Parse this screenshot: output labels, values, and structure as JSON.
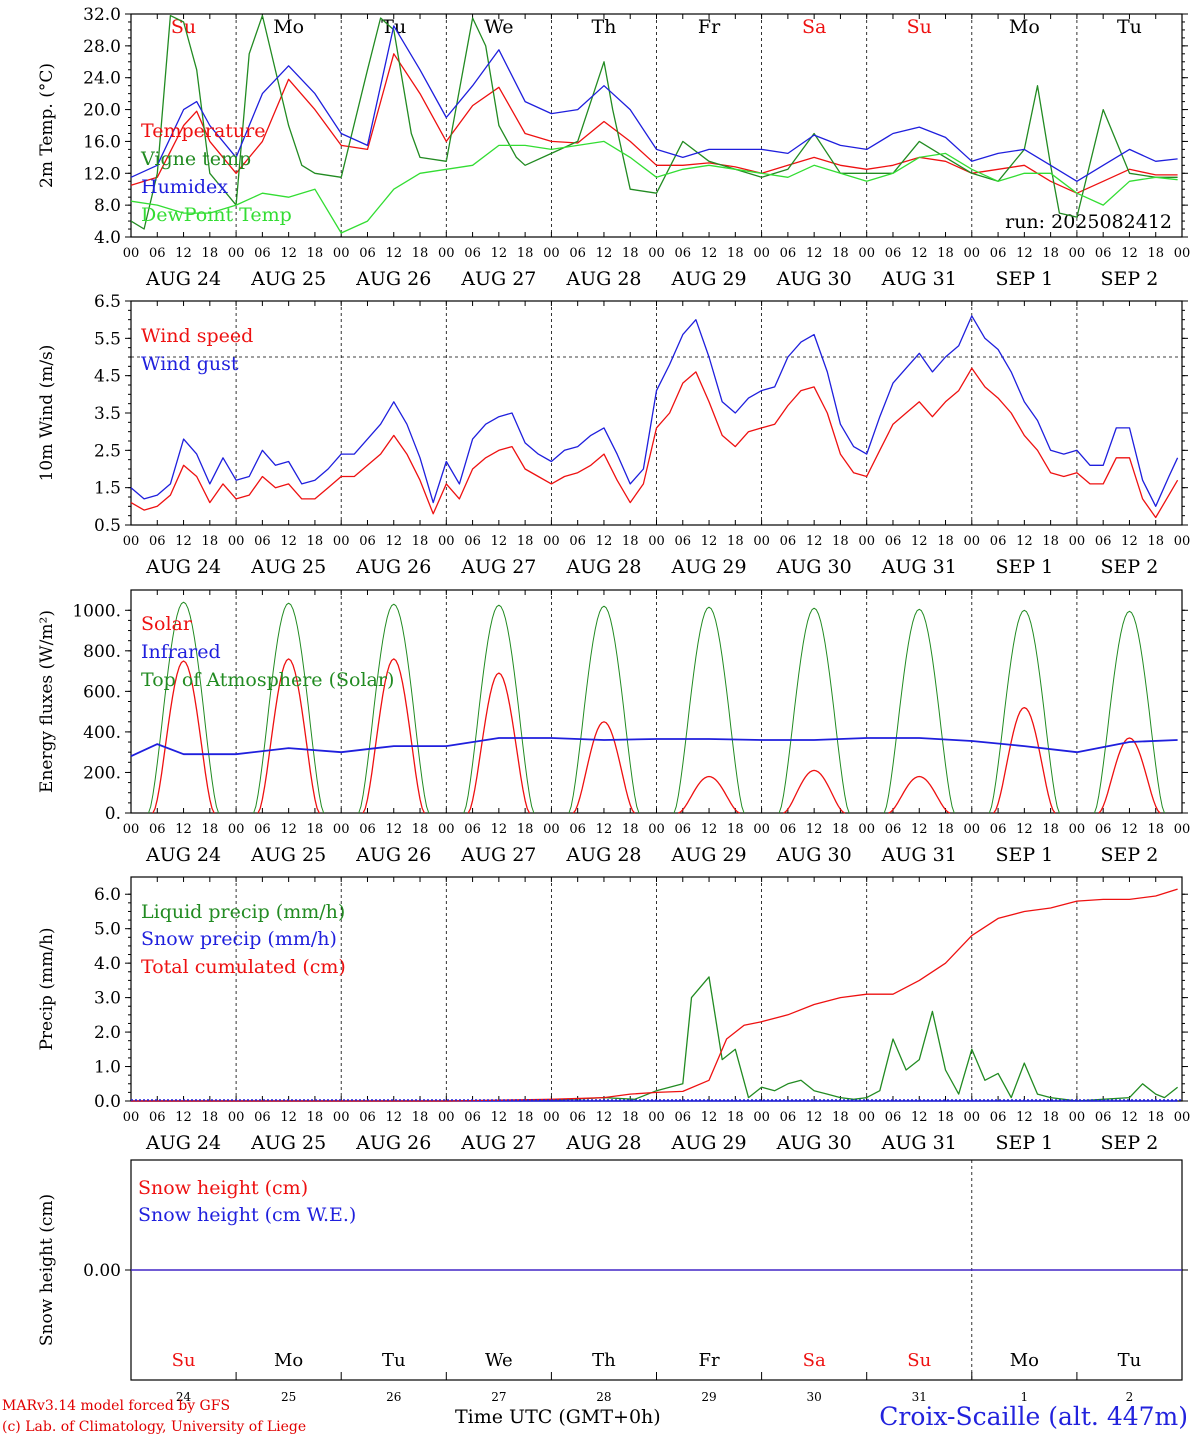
{
  "colors": {
    "red": "#ee1111",
    "green": "#228b22",
    "blue": "#1f1fdd",
    "lightgreen": "#33dd33",
    "sun": "#ee1111",
    "black": "#000000"
  },
  "days": [
    {
      "abbr": "Su",
      "date": "AUG 24",
      "num": "24",
      "weekend": true
    },
    {
      "abbr": "Mo",
      "date": "AUG 25",
      "num": "25",
      "weekend": false
    },
    {
      "abbr": "Tu",
      "date": "AUG 26",
      "num": "26",
      "weekend": false
    },
    {
      "abbr": "We",
      "date": "AUG 27",
      "num": "27",
      "weekend": false
    },
    {
      "abbr": "Th",
      "date": "AUG 28",
      "num": "28",
      "weekend": false
    },
    {
      "abbr": "Fr",
      "date": "AUG 29",
      "num": "29",
      "weekend": false
    },
    {
      "abbr": "Sa",
      "date": "AUG 30",
      "num": "30",
      "weekend": true
    },
    {
      "abbr": "Su",
      "date": "AUG 31",
      "num": "31",
      "weekend": true
    },
    {
      "abbr": "Mo",
      "date": "SEP  1",
      "num": "1",
      "weekend": false
    },
    {
      "abbr": "Tu",
      "date": "SEP  2",
      "num": "2",
      "weekend": false
    }
  ],
  "hour_ticks": [
    "00",
    "06",
    "12",
    "18"
  ],
  "footer": {
    "credit_line1": "MARv3.14 model forced by GFS",
    "credit_line2": "(c) Lab. of Climatology, University of Liege",
    "xaxis_title": "Time UTC (GMT+0h)",
    "station": "Croix-Scaille (alt. 447m)"
  },
  "chart_data": [
    {
      "type": "line",
      "ylabel": "2m Temp. (°C)",
      "ylim": [
        4.0,
        32.0
      ],
      "yticks": [
        "4.0",
        "8.0",
        "12.0",
        "16.0",
        "20.0",
        "24.0",
        "28.0",
        "32.0"
      ],
      "run_label": "run: 2025082412",
      "x_unit": "hours since AUG 24 00 UTC",
      "series": [
        {
          "name": "Temperature",
          "color": "red",
          "x": [
            0,
            6,
            12,
            15,
            18,
            24,
            30,
            36,
            42,
            48,
            54,
            60,
            66,
            72,
            78,
            84,
            90,
            96,
            102,
            108,
            114,
            120,
            126,
            132,
            138,
            144,
            150,
            156,
            162,
            168,
            174,
            180,
            186,
            192,
            198,
            204,
            210,
            216,
            222,
            228,
            234,
            239
          ],
          "values": [
            10.5,
            11.5,
            18,
            19.8,
            16,
            12,
            16,
            23.8,
            20,
            15.5,
            15,
            27,
            22,
            16,
            20.5,
            22.8,
            17,
            16,
            15.8,
            18.5,
            16,
            13,
            13,
            13.3,
            12.8,
            12,
            13,
            14,
            13,
            12.5,
            13,
            14,
            13.5,
            12,
            12.5,
            13,
            11,
            9.5,
            11,
            12.5,
            11.8,
            11.8
          ]
        },
        {
          "name": "Vigne temp",
          "color": "green",
          "x": [
            0,
            3,
            6,
            9,
            12,
            15,
            18,
            24,
            27,
            30,
            36,
            39,
            42,
            48,
            54,
            57,
            60,
            64,
            66,
            72,
            78,
            81,
            84,
            88,
            90,
            96,
            102,
            108,
            110,
            114,
            120,
            126,
            132,
            138,
            144,
            150,
            156,
            162,
            168,
            174,
            180,
            186,
            192,
            198,
            204,
            207,
            210,
            212,
            216,
            222,
            228,
            234,
            239
          ],
          "values": [
            6,
            5,
            12,
            31.8,
            31,
            25,
            12,
            8,
            27,
            31.8,
            18,
            13,
            12,
            11.5,
            25,
            31.5,
            30,
            17,
            14,
            13.5,
            31.5,
            28,
            18,
            14,
            13,
            14.5,
            16,
            26,
            20,
            10,
            9.5,
            16,
            13.5,
            12.5,
            11.5,
            12.5,
            17,
            12,
            12,
            12,
            16,
            14,
            12,
            11,
            15,
            23,
            13,
            7,
            6.5,
            20,
            12,
            11.5,
            11.5
          ]
        },
        {
          "name": "Humidex",
          "color": "blue",
          "x": [
            0,
            6,
            12,
            15,
            18,
            24,
            30,
            36,
            42,
            48,
            54,
            60,
            66,
            72,
            78,
            84,
            90,
            96,
            102,
            108,
            114,
            120,
            126,
            132,
            138,
            144,
            150,
            156,
            162,
            168,
            174,
            180,
            186,
            192,
            198,
            204,
            210,
            216,
            222,
            228,
            234,
            239
          ],
          "values": [
            11.5,
            13,
            20,
            21,
            18,
            14,
            22,
            25.5,
            22,
            17,
            15.5,
            30.5,
            25,
            19,
            23,
            27.5,
            21,
            19.5,
            20,
            23,
            20,
            15,
            14,
            15,
            15,
            15,
            14.5,
            16.8,
            15.5,
            15,
            17,
            17.8,
            16.5,
            13.5,
            14.5,
            15,
            13,
            11,
            13,
            15,
            13.5,
            13.8
          ]
        },
        {
          "name": "DewPoint Temp",
          "color": "lightgreen",
          "x": [
            0,
            6,
            12,
            18,
            24,
            30,
            36,
            42,
            48,
            54,
            60,
            66,
            72,
            78,
            84,
            90,
            96,
            102,
            108,
            114,
            120,
            126,
            132,
            138,
            144,
            150,
            156,
            162,
            168,
            174,
            180,
            186,
            192,
            198,
            204,
            210,
            216,
            222,
            228,
            234,
            239
          ],
          "values": [
            8.5,
            8,
            7,
            7,
            8,
            9.5,
            9,
            10,
            4.5,
            6,
            10,
            12,
            12.5,
            13,
            15.5,
            15.5,
            15,
            15.5,
            16,
            14,
            11.5,
            12.5,
            13,
            12.5,
            12,
            11.5,
            13,
            12,
            11,
            12,
            14,
            14.5,
            12.5,
            11,
            12,
            12,
            9.5,
            8,
            11,
            11.5,
            11.2
          ]
        }
      ]
    },
    {
      "type": "line",
      "ylabel": "10m Wind (m/s)",
      "ylim": [
        0.5,
        6.5
      ],
      "yticks": [
        "0.5",
        "1.5",
        "2.5",
        "3.5",
        "4.5",
        "5.5",
        "6.5"
      ],
      "ref_line": 5.0,
      "x_unit": "hours since AUG 24 00 UTC",
      "series": [
        {
          "name": "Wind speed",
          "color": "red",
          "x": [
            0,
            3,
            6,
            9,
            12,
            15,
            18,
            21,
            24,
            27,
            30,
            33,
            36,
            39,
            42,
            45,
            48,
            51,
            54,
            57,
            60,
            63,
            66,
            69,
            72,
            75,
            78,
            81,
            84,
            87,
            90,
            93,
            96,
            99,
            102,
            105,
            108,
            111,
            114,
            117,
            120,
            123,
            126,
            129,
            132,
            135,
            138,
            141,
            144,
            147,
            150,
            153,
            156,
            159,
            162,
            165,
            168,
            171,
            174,
            177,
            180,
            183,
            186,
            189,
            192,
            195,
            198,
            201,
            204,
            207,
            210,
            213,
            216,
            219,
            222,
            225,
            228,
            231,
            234,
            237,
            239
          ],
          "values": [
            1.1,
            0.9,
            1.0,
            1.3,
            2.1,
            1.8,
            1.1,
            1.6,
            1.2,
            1.3,
            1.8,
            1.5,
            1.6,
            1.2,
            1.2,
            1.5,
            1.8,
            1.8,
            2.1,
            2.4,
            2.9,
            2.4,
            1.7,
            0.8,
            1.6,
            1.2,
            2.0,
            2.3,
            2.5,
            2.6,
            2.0,
            1.8,
            1.6,
            1.8,
            1.9,
            2.1,
            2.4,
            1.7,
            1.1,
            1.6,
            3.1,
            3.5,
            4.3,
            4.6,
            3.8,
            2.9,
            2.6,
            3.0,
            3.1,
            3.2,
            3.7,
            4.1,
            4.2,
            3.5,
            2.4,
            1.9,
            1.8,
            2.5,
            3.2,
            3.5,
            3.8,
            3.4,
            3.8,
            4.1,
            4.7,
            4.2,
            3.9,
            3.5,
            2.9,
            2.5,
            1.9,
            1.8,
            1.9,
            1.6,
            1.6,
            2.3,
            2.3,
            1.2,
            0.7,
            1.3,
            1.7
          ]
        },
        {
          "name": "Wind gust",
          "color": "blue",
          "x": [
            0,
            3,
            6,
            9,
            12,
            15,
            18,
            21,
            24,
            27,
            30,
            33,
            36,
            39,
            42,
            45,
            48,
            51,
            54,
            57,
            60,
            63,
            66,
            69,
            72,
            75,
            78,
            81,
            84,
            87,
            90,
            93,
            96,
            99,
            102,
            105,
            108,
            111,
            114,
            117,
            120,
            123,
            126,
            129,
            132,
            135,
            138,
            141,
            144,
            147,
            150,
            153,
            156,
            159,
            162,
            165,
            168,
            171,
            174,
            177,
            180,
            183,
            186,
            189,
            192,
            195,
            198,
            201,
            204,
            207,
            210,
            213,
            216,
            219,
            222,
            225,
            228,
            231,
            234,
            237,
            239
          ],
          "values": [
            1.5,
            1.2,
            1.3,
            1.6,
            2.8,
            2.4,
            1.6,
            2.3,
            1.7,
            1.8,
            2.5,
            2.1,
            2.2,
            1.6,
            1.7,
            2.0,
            2.4,
            2.4,
            2.8,
            3.2,
            3.8,
            3.2,
            2.3,
            1.1,
            2.2,
            1.6,
            2.8,
            3.2,
            3.4,
            3.5,
            2.7,
            2.4,
            2.2,
            2.5,
            2.6,
            2.9,
            3.1,
            2.4,
            1.6,
            2.0,
            4.1,
            4.8,
            5.6,
            6.0,
            5.0,
            3.8,
            3.5,
            3.9,
            4.1,
            4.2,
            5.0,
            5.4,
            5.6,
            4.6,
            3.2,
            2.6,
            2.4,
            3.4,
            4.3,
            4.7,
            5.1,
            4.6,
            5.0,
            5.3,
            6.1,
            5.5,
            5.2,
            4.6,
            3.8,
            3.3,
            2.5,
            2.4,
            2.5,
            2.1,
            2.1,
            3.1,
            3.1,
            1.7,
            1.0,
            1.8,
            2.3
          ]
        }
      ]
    },
    {
      "type": "line",
      "ylabel": "Energy fluxes (W/m²)",
      "ylim": [
        0,
        1100
      ],
      "yticks": [
        "0.",
        "200.",
        "400.",
        "600.",
        "800.",
        "1000."
      ],
      "x_unit": "hours since AUG 24 00 UTC",
      "toa_peaks": [
        1040,
        1035,
        1030,
        1025,
        1020,
        1015,
        1010,
        1005,
        1000,
        995
      ],
      "solar_peaks": [
        750,
        760,
        760,
        690,
        450,
        180,
        210,
        180,
        520,
        370
      ],
      "infrared": {
        "x": [
          0,
          6,
          12,
          24,
          36,
          48,
          60,
          72,
          84,
          96,
          108,
          120,
          132,
          144,
          156,
          168,
          180,
          192,
          204,
          216,
          228,
          239
        ],
        "values": [
          280,
          340,
          290,
          290,
          320,
          300,
          330,
          330,
          370,
          370,
          360,
          365,
          365,
          360,
          360,
          370,
          370,
          355,
          330,
          300,
          350,
          360
        ]
      },
      "series": [
        {
          "name": "Solar",
          "color": "red"
        },
        {
          "name": "Infrared",
          "color": "blue"
        },
        {
          "name": "Top of Atmosphere (Solar)",
          "color": "green"
        }
      ]
    },
    {
      "type": "line",
      "ylabel": "Precip (mm/h)",
      "ylim": [
        0,
        6.5
      ],
      "yticks": [
        "0.0",
        "1.0",
        "2.0",
        "3.0",
        "4.0",
        "5.0",
        "6.0"
      ],
      "x_unit": "hours since AUG 24 00 UTC",
      "series": [
        {
          "name": "Liquid precip (mm/h)",
          "color": "green",
          "x": [
            0,
            60,
            72,
            96,
            108,
            115,
            120,
            126,
            128,
            132,
            135,
            138,
            141,
            144,
            147,
            150,
            153,
            156,
            159,
            162,
            165,
            168,
            171,
            174,
            177,
            180,
            183,
            186,
            189,
            192,
            195,
            198,
            201,
            204,
            207,
            210,
            213,
            216,
            222,
            228,
            231,
            234,
            236,
            239
          ],
          "values": [
            0,
            0,
            0,
            0.02,
            0.1,
            0.05,
            0.3,
            0.5,
            3.0,
            3.6,
            1.2,
            1.5,
            0.1,
            0.4,
            0.3,
            0.5,
            0.6,
            0.3,
            0.2,
            0.1,
            0.05,
            0.1,
            0.3,
            1.8,
            0.9,
            1.2,
            2.6,
            0.9,
            0.2,
            1.5,
            0.6,
            0.8,
            0.1,
            1.1,
            0.2,
            0.1,
            0.05,
            0,
            0.05,
            0.1,
            0.5,
            0.2,
            0.1,
            0.4
          ]
        },
        {
          "name": "Snow precip (mm/h)",
          "color": "blue",
          "x": [
            0,
            239
          ],
          "values": [
            0,
            0
          ]
        },
        {
          "name": "Total cumulated (cm)",
          "color": "red",
          "x": [
            0,
            72,
            96,
            108,
            114,
            120,
            126,
            132,
            136,
            140,
            144,
            150,
            156,
            162,
            168,
            174,
            180,
            186,
            192,
            198,
            204,
            210,
            216,
            222,
            228,
            234,
            239
          ],
          "values": [
            0,
            0,
            0.05,
            0.1,
            0.2,
            0.25,
            0.28,
            0.6,
            1.8,
            2.2,
            2.3,
            2.5,
            2.8,
            3.0,
            3.1,
            3.1,
            3.5,
            4.0,
            4.8,
            5.3,
            5.5,
            5.6,
            5.8,
            5.85,
            5.85,
            5.95,
            6.15
          ]
        }
      ]
    },
    {
      "type": "line",
      "ylabel": "Snow height (cm)",
      "ylim": [
        -1,
        1
      ],
      "yticks": [
        "0.00"
      ],
      "x_unit": "hours since AUG 24 00 UTC",
      "series": [
        {
          "name": "Snow height (cm)",
          "color": "red",
          "x": [
            0,
            240
          ],
          "values": [
            0,
            0
          ]
        },
        {
          "name": "Snow height (cm W.E.)",
          "color": "blue",
          "x": [
            0,
            240
          ],
          "values": [
            0,
            0
          ]
        }
      ]
    }
  ]
}
